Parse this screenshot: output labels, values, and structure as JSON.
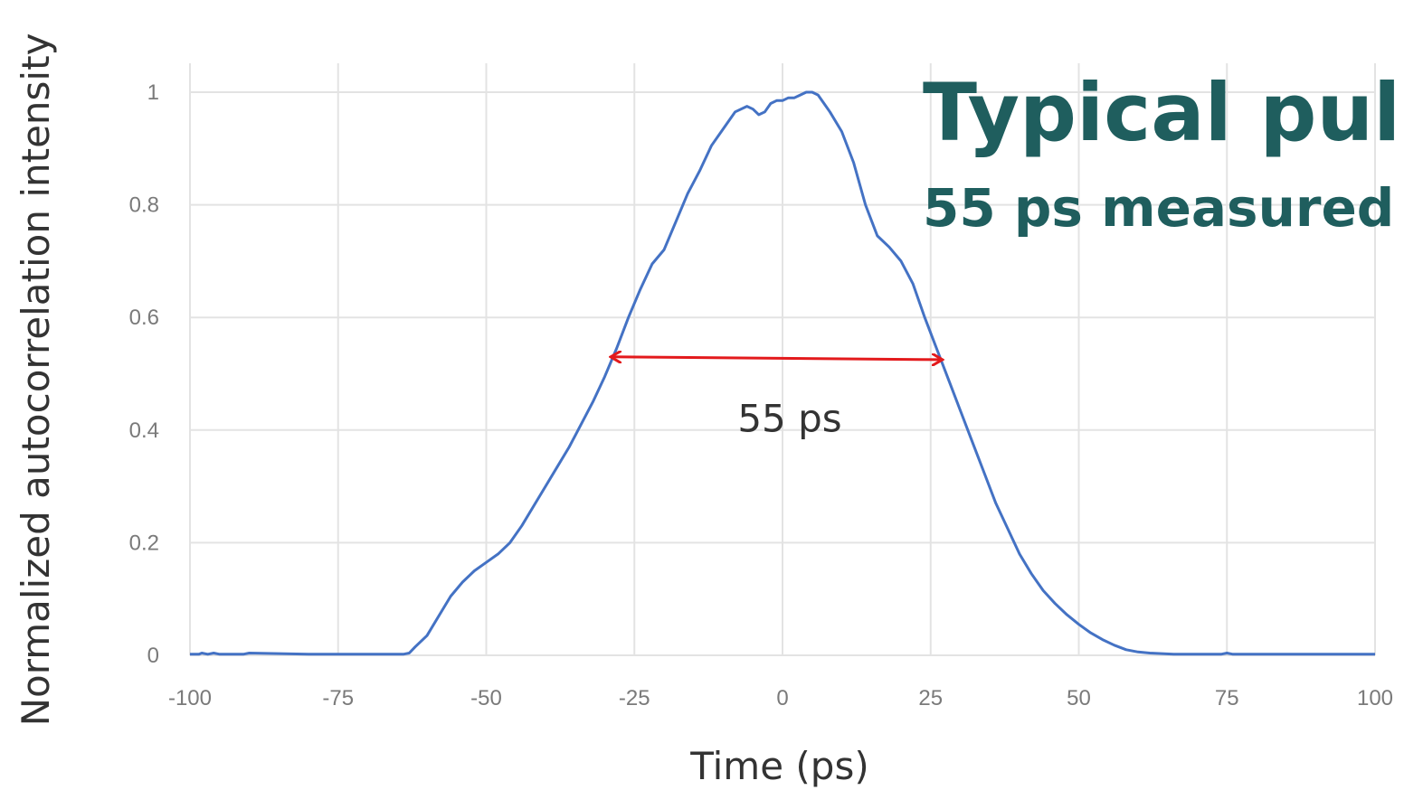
{
  "overlay": {
    "title": "Typical pul",
    "subtitle": "55 ps measured"
  },
  "colors": {
    "series": "#4472c4",
    "arrow": "#e31a1c",
    "grid": "#e3e3e3",
    "overlay_text": "#1f5e5e"
  },
  "chart_data": {
    "type": "line",
    "title": "",
    "xlabel": "Time (ps)",
    "ylabel": "Normalized autocorrelation intensity",
    "xlim": [
      -100,
      100
    ],
    "ylim": [
      0,
      1
    ],
    "xticks": [
      -100,
      -75,
      -50,
      -25,
      0,
      25,
      50,
      75,
      100
    ],
    "xtick_labels": [
      "-100",
      "-75",
      "-50",
      "-25",
      "0",
      "25",
      "50",
      "75",
      "100"
    ],
    "yticks": [
      0,
      0.2,
      0.4,
      0.6,
      0.8,
      1
    ],
    "ytick_labels": [
      "0",
      "0.2",
      "0.4",
      "0.6",
      "0.8",
      "1"
    ],
    "grid": true,
    "legend": "none",
    "series": [
      {
        "x": [
          -100,
          -98.5,
          -98,
          -97,
          -96,
          -95,
          -91,
          -90,
          -80,
          -70,
          -64,
          -63,
          -62,
          -60,
          -58,
          -56,
          -54,
          -52,
          -50,
          -48,
          -46,
          -44,
          -42,
          -40,
          -38,
          -36,
          -34,
          -32,
          -30,
          -28,
          -26,
          -24,
          -22,
          -20,
          -18,
          -16,
          -14,
          -12,
          -10,
          -8,
          -6,
          -5,
          -4,
          -3,
          -2,
          -1,
          0,
          1,
          2,
          3,
          4,
          5,
          6,
          7,
          8,
          10,
          12,
          14,
          16,
          18,
          20,
          22,
          24,
          26,
          28,
          30,
          32,
          34,
          36,
          38,
          40,
          42,
          44,
          46,
          48,
          50,
          52,
          54,
          56,
          58,
          60,
          62,
          64,
          66,
          68,
          70,
          72,
          74,
          75,
          76,
          78,
          80,
          85,
          90,
          95,
          100
        ],
        "y": [
          0.002,
          0.002,
          0.004,
          0.002,
          0.004,
          0.002,
          0.002,
          0.004,
          0.002,
          0.002,
          0.002,
          0.004,
          0.015,
          0.035,
          0.07,
          0.105,
          0.13,
          0.15,
          0.165,
          0.18,
          0.2,
          0.23,
          0.265,
          0.3,
          0.335,
          0.37,
          0.41,
          0.45,
          0.495,
          0.545,
          0.6,
          0.65,
          0.695,
          0.72,
          0.77,
          0.82,
          0.86,
          0.905,
          0.935,
          0.965,
          0.975,
          0.97,
          0.96,
          0.965,
          0.98,
          0.985,
          0.985,
          0.99,
          0.99,
          0.995,
          1.0,
          1.0,
          0.995,
          0.98,
          0.965,
          0.93,
          0.875,
          0.8,
          0.745,
          0.725,
          0.7,
          0.66,
          0.6,
          0.545,
          0.49,
          0.435,
          0.38,
          0.325,
          0.27,
          0.225,
          0.18,
          0.145,
          0.115,
          0.092,
          0.072,
          0.055,
          0.04,
          0.028,
          0.018,
          0.01,
          0.006,
          0.004,
          0.003,
          0.002,
          0.002,
          0.002,
          0.002,
          0.002,
          0.004,
          0.002,
          0.002,
          0.002,
          0.002,
          0.002,
          0.002,
          0.002
        ]
      }
    ],
    "annotations": [
      {
        "type": "double-arrow",
        "from": [
          -29,
          0.53
        ],
        "to": [
          27,
          0.525
        ],
        "text": "55 ps",
        "text_at": [
          0,
          0.42
        ]
      }
    ]
  }
}
